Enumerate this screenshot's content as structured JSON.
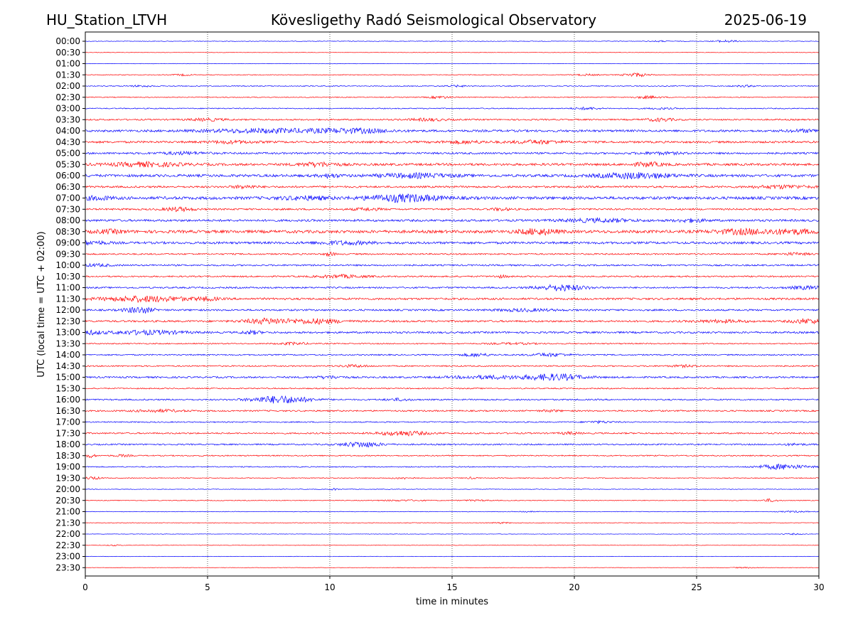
{
  "header": {
    "station": "HU_Station_LTVH",
    "observatory": "Kövesligethy Radó Seismological Observatory",
    "date": "2025-06-19"
  },
  "chart_data": {
    "type": "line",
    "title": "Kövesligethy Radó Seismological Observatory",
    "xlabel": "time in minutes",
    "ylabel": "UTC (local time = UTC + 02:00)",
    "xlim": [
      0,
      30
    ],
    "x_ticks": [
      "0",
      "5",
      "10",
      "15",
      "20",
      "25",
      "30"
    ],
    "vertical_gridlines_at_minutes": [
      5,
      10,
      15,
      20,
      25
    ],
    "grid": "vertical dotted",
    "row_colors": [
      "#0000ff",
      "#ff0000"
    ],
    "rows": [
      {
        "label": "00:00",
        "noise": 0.4,
        "events": [
          {
            "t": 26.2,
            "amp": 1.5,
            "width": 0.5
          },
          {
            "t": 23.5,
            "amp": 0.8,
            "width": 0.4
          }
        ]
      },
      {
        "label": "00:30",
        "noise": 0.3,
        "events": []
      },
      {
        "label": "01:00",
        "noise": 0.3,
        "events": []
      },
      {
        "label": "01:30",
        "noise": 0.5,
        "events": [
          {
            "t": 22.5,
            "amp": 2.5,
            "width": 0.5
          },
          {
            "t": 4.0,
            "amp": 1.0,
            "width": 0.4
          },
          {
            "t": 20.5,
            "amp": 1.0,
            "width": 0.5
          }
        ]
      },
      {
        "label": "02:00",
        "noise": 0.6,
        "events": [
          {
            "t": 2.3,
            "amp": 1.0,
            "width": 0.5
          },
          {
            "t": 15.2,
            "amp": 1.0,
            "width": 0.5
          },
          {
            "t": 27.0,
            "amp": 1.0,
            "width": 0.5
          }
        ]
      },
      {
        "label": "02:30",
        "noise": 0.6,
        "events": [
          {
            "t": 14.5,
            "amp": 1.5,
            "width": 0.5
          },
          {
            "t": 23.0,
            "amp": 1.5,
            "width": 0.6
          }
        ]
      },
      {
        "label": "03:00",
        "noise": 0.7,
        "events": [
          {
            "t": 20.5,
            "amp": 1.5,
            "width": 0.6
          },
          {
            "t": 23.5,
            "amp": 1.0,
            "width": 0.5
          }
        ]
      },
      {
        "label": "03:30",
        "noise": 1.0,
        "events": [
          {
            "t": 5.0,
            "amp": 1.5,
            "width": 0.8
          },
          {
            "t": 14.0,
            "amp": 1.5,
            "width": 0.8
          },
          {
            "t": 23.5,
            "amp": 2.0,
            "width": 0.6
          }
        ]
      },
      {
        "label": "04:00",
        "noise": 1.5,
        "events": [
          {
            "t": 7.5,
            "amp": 2.5,
            "width": 2.5
          },
          {
            "t": 11.0,
            "amp": 2.5,
            "width": 1.5
          },
          {
            "t": 29.5,
            "amp": 1.5,
            "width": 0.8
          }
        ]
      },
      {
        "label": "04:30",
        "noise": 1.4,
        "events": [
          {
            "t": 18.5,
            "amp": 2.0,
            "width": 1.0
          },
          {
            "t": 6.0,
            "amp": 1.5,
            "width": 1.0
          },
          {
            "t": 15.5,
            "amp": 1.5,
            "width": 1.0
          }
        ]
      },
      {
        "label": "05:00",
        "noise": 1.3,
        "events": [
          {
            "t": 4.0,
            "amp": 1.5,
            "width": 1.0
          },
          {
            "t": 23.5,
            "amp": 1.2,
            "width": 1.0
          }
        ]
      },
      {
        "label": "05:30",
        "noise": 1.6,
        "events": [
          {
            "t": 2.5,
            "amp": 2.5,
            "width": 1.5
          },
          {
            "t": 9.5,
            "amp": 2.5,
            "width": 0.8
          },
          {
            "t": 23.0,
            "amp": 2.5,
            "width": 0.6
          }
        ]
      },
      {
        "label": "06:00",
        "noise": 1.8,
        "events": [
          {
            "t": 13.5,
            "amp": 2.5,
            "width": 1.5
          },
          {
            "t": 22.5,
            "amp": 3.5,
            "width": 1.5
          },
          {
            "t": 10.0,
            "amp": 2.0,
            "width": 0.4
          }
        ]
      },
      {
        "label": "06:30",
        "noise": 1.3,
        "events": [
          {
            "t": 6.5,
            "amp": 2.0,
            "width": 0.5
          },
          {
            "t": 28.5,
            "amp": 2.0,
            "width": 1.2
          }
        ]
      },
      {
        "label": "07:00",
        "noise": 2.0,
        "events": [
          {
            "t": 13.0,
            "amp": 4.5,
            "width": 1.5
          },
          {
            "t": 9.0,
            "amp": 2.0,
            "width": 1.0
          },
          {
            "t": 0.5,
            "amp": 2.0,
            "width": 0.6
          }
        ]
      },
      {
        "label": "07:30",
        "noise": 1.2,
        "events": [
          {
            "t": 3.8,
            "amp": 2.5,
            "width": 0.6
          },
          {
            "t": 11.5,
            "amp": 1.5,
            "width": 0.6
          },
          {
            "t": 17.0,
            "amp": 1.5,
            "width": 0.4
          }
        ]
      },
      {
        "label": "08:00",
        "noise": 1.5,
        "events": [
          {
            "t": 21.0,
            "amp": 2.0,
            "width": 1.5
          },
          {
            "t": 24.8,
            "amp": 2.0,
            "width": 0.6
          }
        ]
      },
      {
        "label": "08:30",
        "noise": 2.0,
        "events": [
          {
            "t": 18.5,
            "amp": 3.5,
            "width": 0.8
          },
          {
            "t": 27.0,
            "amp": 3.0,
            "width": 1.2
          },
          {
            "t": 29.0,
            "amp": 2.5,
            "width": 1.0
          },
          {
            "t": 1.0,
            "amp": 2.0,
            "width": 0.6
          }
        ]
      },
      {
        "label": "09:00",
        "noise": 1.6,
        "events": [
          {
            "t": 10.5,
            "amp": 2.0,
            "width": 1.2
          },
          {
            "t": 0.3,
            "amp": 2.0,
            "width": 0.6
          }
        ]
      },
      {
        "label": "09:30",
        "noise": 1.0,
        "events": [
          {
            "t": 10.0,
            "amp": 2.5,
            "width": 0.2
          },
          {
            "t": 29.0,
            "amp": 1.5,
            "width": 0.6
          }
        ]
      },
      {
        "label": "10:00",
        "noise": 1.1,
        "events": [
          {
            "t": 0.5,
            "amp": 1.5,
            "width": 0.6
          }
        ]
      },
      {
        "label": "10:30",
        "noise": 1.0,
        "events": [
          {
            "t": 10.5,
            "amp": 2.0,
            "width": 1.0
          },
          {
            "t": 17.0,
            "amp": 1.5,
            "width": 0.3
          }
        ]
      },
      {
        "label": "11:00",
        "noise": 1.1,
        "events": [
          {
            "t": 19.5,
            "amp": 4.0,
            "width": 1.0
          },
          {
            "t": 29.5,
            "amp": 2.0,
            "width": 0.8
          }
        ]
      },
      {
        "label": "11:30",
        "noise": 1.4,
        "events": [
          {
            "t": 2.5,
            "amp": 3.5,
            "width": 1.8
          },
          {
            "t": 5.0,
            "amp": 2.0,
            "width": 0.4
          }
        ]
      },
      {
        "label": "12:00",
        "noise": 1.2,
        "events": [
          {
            "t": 2.2,
            "amp": 4.0,
            "width": 0.6
          },
          {
            "t": 18.0,
            "amp": 1.5,
            "width": 1.2
          }
        ]
      },
      {
        "label": "12:30",
        "noise": 1.3,
        "events": [
          {
            "t": 7.5,
            "amp": 3.5,
            "width": 1.0
          },
          {
            "t": 9.5,
            "amp": 3.0,
            "width": 1.0
          },
          {
            "t": 29.5,
            "amp": 3.0,
            "width": 0.6
          },
          {
            "t": 26.0,
            "amp": 1.5,
            "width": 1.0
          }
        ]
      },
      {
        "label": "13:00",
        "noise": 1.3,
        "events": [
          {
            "t": 2.5,
            "amp": 2.5,
            "width": 1.5
          },
          {
            "t": 6.8,
            "amp": 2.0,
            "width": 0.4
          },
          {
            "t": 0.2,
            "amp": 2.0,
            "width": 0.5
          }
        ]
      },
      {
        "label": "13:30",
        "noise": 0.8,
        "events": [
          {
            "t": 8.5,
            "amp": 1.5,
            "width": 0.6
          },
          {
            "t": 17.5,
            "amp": 1.0,
            "width": 1.0
          }
        ]
      },
      {
        "label": "14:00",
        "noise": 0.9,
        "events": [
          {
            "t": 16.0,
            "amp": 2.0,
            "width": 0.6
          },
          {
            "t": 19.0,
            "amp": 2.0,
            "width": 0.8
          }
        ]
      },
      {
        "label": "14:30",
        "noise": 0.9,
        "events": [
          {
            "t": 11.0,
            "amp": 1.5,
            "width": 0.6
          },
          {
            "t": 24.5,
            "amp": 1.2,
            "width": 0.6
          }
        ]
      },
      {
        "label": "15:00",
        "noise": 1.2,
        "events": [
          {
            "t": 19.2,
            "amp": 4.0,
            "width": 1.2
          },
          {
            "t": 16.5,
            "amp": 2.0,
            "width": 1.5
          },
          {
            "t": 10.0,
            "amp": 1.5,
            "width": 0.6
          }
        ]
      },
      {
        "label": "15:30",
        "noise": 0.8,
        "events": []
      },
      {
        "label": "16:00",
        "noise": 1.0,
        "events": [
          {
            "t": 8.0,
            "amp": 5.0,
            "width": 1.2
          },
          {
            "t": 12.8,
            "amp": 1.5,
            "width": 0.5
          }
        ]
      },
      {
        "label": "16:30",
        "noise": 1.0,
        "events": [
          {
            "t": 3.0,
            "amp": 1.5,
            "width": 1.0
          },
          {
            "t": 19.0,
            "amp": 1.2,
            "width": 0.4
          }
        ]
      },
      {
        "label": "17:00",
        "noise": 0.8,
        "events": [
          {
            "t": 21.0,
            "amp": 1.2,
            "width": 0.6
          }
        ]
      },
      {
        "label": "17:30",
        "noise": 1.0,
        "events": [
          {
            "t": 13.0,
            "amp": 3.0,
            "width": 1.0
          },
          {
            "t": 19.8,
            "amp": 1.5,
            "width": 0.4
          }
        ]
      },
      {
        "label": "18:00",
        "noise": 1.0,
        "events": [
          {
            "t": 11.3,
            "amp": 3.5,
            "width": 0.8
          },
          {
            "t": 29.0,
            "amp": 1.0,
            "width": 0.5
          }
        ]
      },
      {
        "label": "18:30",
        "noise": 0.8,
        "events": [
          {
            "t": 0.2,
            "amp": 2.5,
            "width": 0.2
          },
          {
            "t": 1.5,
            "amp": 1.2,
            "width": 0.4
          }
        ]
      },
      {
        "label": "19:00",
        "noise": 0.7,
        "events": [
          {
            "t": 28.5,
            "amp": 3.5,
            "width": 1.0
          }
        ]
      },
      {
        "label": "19:30",
        "noise": 0.6,
        "events": [
          {
            "t": 0.3,
            "amp": 2.0,
            "width": 0.3
          },
          {
            "t": 13.0,
            "amp": 1.2,
            "width": 0.4
          },
          {
            "t": 15.8,
            "amp": 1.0,
            "width": 0.2
          }
        ]
      },
      {
        "label": "20:00",
        "noise": 0.4,
        "events": [
          {
            "t": 10.2,
            "amp": 1.2,
            "width": 0.2
          }
        ]
      },
      {
        "label": "20:30",
        "noise": 0.5,
        "events": [
          {
            "t": 28.0,
            "amp": 2.0,
            "width": 0.3
          },
          {
            "t": 13.0,
            "amp": 0.8,
            "width": 1.0
          },
          {
            "t": 16.0,
            "amp": 0.8,
            "width": 0.6
          }
        ]
      },
      {
        "label": "21:00",
        "noise": 0.4,
        "events": [
          {
            "t": 18.0,
            "amp": 0.8,
            "width": 0.4
          },
          {
            "t": 29.0,
            "amp": 0.8,
            "width": 0.6
          }
        ]
      },
      {
        "label": "21:30",
        "noise": 0.4,
        "events": [
          {
            "t": 17.0,
            "amp": 0.8,
            "width": 0.4
          }
        ]
      },
      {
        "label": "22:00",
        "noise": 0.3,
        "events": [
          {
            "t": 29.0,
            "amp": 0.8,
            "width": 0.4
          }
        ]
      },
      {
        "label": "22:30",
        "noise": 0.3,
        "events": [
          {
            "t": 1.2,
            "amp": 0.8,
            "width": 0.3
          }
        ]
      },
      {
        "label": "23:00",
        "noise": 0.3,
        "events": []
      },
      {
        "label": "23:30",
        "noise": 0.3,
        "events": [
          {
            "t": 27.0,
            "amp": 0.6,
            "width": 0.6
          }
        ]
      }
    ]
  }
}
